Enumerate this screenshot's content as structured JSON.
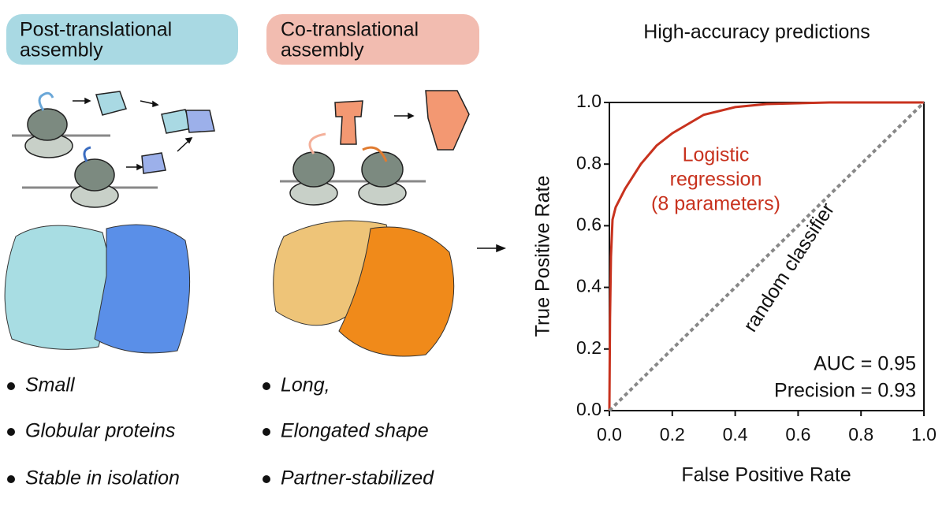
{
  "panels": [
    {
      "title": [
        "Post-translational",
        "assembly"
      ],
      "bullets": [
        "Small",
        "Globular proteins",
        "Stable in isolation"
      ]
    },
    {
      "title": [
        "Co-translational",
        "assembly"
      ],
      "bullets": [
        "Long,",
        "Elongated shape",
        "Partner-stabilized"
      ]
    }
  ],
  "chart_data": {
    "type": "line",
    "title": "High-accuracy predictions",
    "xlabel": "False Positive Rate",
    "ylabel": "True Positive Rate",
    "xlim": [
      0,
      1
    ],
    "ylim": [
      0,
      1
    ],
    "xticks": [
      {
        "value": 0,
        "label": "0.0"
      },
      0.2,
      0.4,
      0.6,
      0.8,
      {
        "value": 1,
        "label": "1.0"
      }
    ],
    "yticks": [
      {
        "value": 0,
        "label": "0.0"
      },
      0.2,
      0.4,
      0.6,
      0.8,
      {
        "value": 1,
        "label": "1.0"
      }
    ],
    "series": [
      {
        "label_lines": [
          "Logistic",
          "regression",
          "(8 parameters)"
        ],
        "color": "#c8321e",
        "dashed": false,
        "x": [
          0,
          0.002,
          0.005,
          0.01,
          0.02,
          0.05,
          0.1,
          0.15,
          0.2,
          0.25,
          0.3,
          0.4,
          0.5,
          0.7,
          1
        ],
        "values": [
          0,
          0.3,
          0.5,
          0.62,
          0.66,
          0.72,
          0.8,
          0.86,
          0.9,
          0.93,
          0.96,
          0.985,
          0.995,
          1,
          1
        ]
      },
      {
        "label_lines": [
          "random classifier"
        ],
        "color": "#888888",
        "dashed": true,
        "x": [
          0,
          1
        ],
        "values": [
          0,
          1
        ]
      }
    ],
    "annotations": [
      "AUC = 0.95",
      "Precision = 0.93"
    ]
  }
}
